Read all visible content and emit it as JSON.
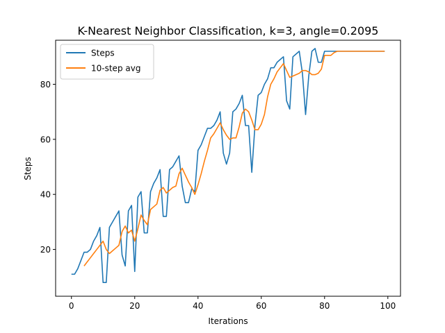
{
  "chart_data": {
    "type": "line",
    "title": "K-Nearest Neighbor Classification, k=3, angle=0.2095",
    "xlabel": "Iterations",
    "ylabel": "Steps",
    "xlim": [
      -5,
      104
    ],
    "ylim": [
      3,
      96
    ],
    "xticks": [
      0,
      20,
      40,
      60,
      80,
      100
    ],
    "yticks": [
      20,
      40,
      60,
      80
    ],
    "grid": false,
    "legend_position": "top-left",
    "series": [
      {
        "name": "Steps",
        "color": "#1f77b4",
        "x": [
          0,
          1,
          2,
          3,
          4,
          5,
          6,
          7,
          8,
          9,
          10,
          11,
          12,
          13,
          14,
          15,
          16,
          17,
          18,
          19,
          20,
          21,
          22,
          23,
          24,
          25,
          26,
          27,
          28,
          29,
          30,
          31,
          32,
          33,
          34,
          35,
          36,
          37,
          38,
          39,
          40,
          41,
          42,
          43,
          44,
          45,
          46,
          47,
          48,
          49,
          50,
          51,
          52,
          53,
          54,
          55,
          56,
          57,
          58,
          59,
          60,
          61,
          62,
          63,
          64,
          65,
          66,
          67,
          68,
          69,
          70,
          71,
          72,
          73,
          74,
          75,
          76,
          77,
          78,
          79,
          80,
          81,
          82,
          83,
          84,
          85,
          86,
          87,
          88,
          89,
          90,
          91,
          92,
          93,
          94,
          95,
          96,
          97,
          98,
          99
        ],
        "values": [
          11,
          11,
          13,
          16,
          19,
          19,
          20,
          23,
          25,
          28,
          8,
          8,
          28,
          30,
          32,
          34,
          18,
          14,
          34,
          36,
          12,
          39,
          41,
          26,
          26,
          41,
          44,
          46,
          49,
          32,
          32,
          49,
          50,
          52,
          54,
          43,
          37,
          37,
          42,
          41,
          56,
          58,
          61,
          64,
          64,
          65,
          67,
          70,
          55,
          51,
          55,
          70,
          71,
          73,
          76,
          65,
          65,
          48,
          65,
          76,
          77,
          80,
          82,
          86,
          86,
          88,
          89,
          90,
          74,
          71,
          90,
          91,
          92,
          84,
          69,
          83,
          92,
          93,
          88,
          88,
          92,
          92,
          92,
          92,
          92,
          92,
          92,
          92,
          92,
          92,
          92,
          92,
          92,
          92,
          92,
          92,
          92,
          92,
          92,
          92
        ]
      },
      {
        "name": "10-step avg",
        "color": "#ff7f0e",
        "x": [
          4,
          5,
          6,
          7,
          8,
          9,
          10,
          11,
          12,
          13,
          14,
          15,
          16,
          17,
          18,
          19,
          20,
          21,
          22,
          23,
          24,
          25,
          26,
          27,
          28,
          29,
          30,
          31,
          32,
          33,
          34,
          35,
          36,
          37,
          38,
          39,
          40,
          41,
          42,
          43,
          44,
          45,
          46,
          47,
          48,
          49,
          50,
          51,
          52,
          53,
          54,
          55,
          56,
          57,
          58,
          59,
          60,
          61,
          62,
          63,
          64,
          65,
          66,
          67,
          68,
          69,
          70,
          71,
          72,
          73,
          74,
          75,
          76,
          77,
          78,
          79,
          80,
          81,
          82,
          83,
          84,
          85,
          86,
          87,
          88,
          89,
          90,
          91,
          92,
          93,
          94,
          95,
          96,
          97,
          98,
          99
        ],
        "values": [
          14,
          15.5,
          17,
          18.5,
          20,
          21.5,
          23,
          20,
          18.5,
          19.5,
          20.5,
          21.5,
          26.5,
          28.5,
          26,
          27,
          23,
          27.5,
          32.5,
          30.5,
          29,
          34.5,
          35.5,
          36.5,
          41.5,
          42.5,
          40.5,
          41.5,
          42.5,
          43,
          47.5,
          49.5,
          47,
          44.5,
          42.5,
          40,
          43.5,
          47.5,
          52,
          56,
          60.5,
          62,
          64,
          66,
          63.5,
          61.5,
          60,
          60.5,
          60.5,
          64.5,
          69.5,
          71,
          70,
          67,
          63.5,
          63.5,
          65.5,
          69,
          75.5,
          80,
          82,
          84.5,
          86,
          87.5,
          85,
          82.5,
          83,
          83.5,
          84,
          85,
          85,
          84.5,
          83.5,
          83.5,
          84,
          85.5,
          90.5,
          90.5,
          90.5,
          91.5,
          92,
          92,
          92,
          92,
          92,
          92,
          92,
          92,
          92,
          92,
          92,
          92,
          92,
          92,
          92,
          92
        ]
      }
    ]
  }
}
